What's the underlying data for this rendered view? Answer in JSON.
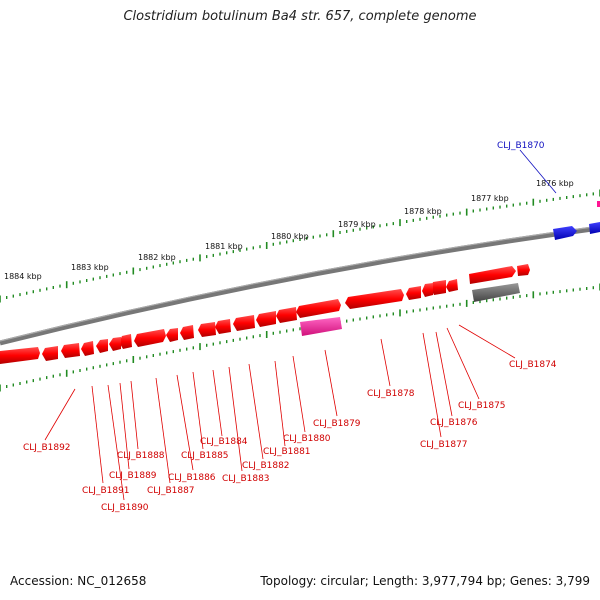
{
  "title": "Clostridium botulinum Ba4 str. 657, complete genome",
  "footer": {
    "accession": "Accession: NC_012658",
    "summary": "Topology: circular; Length: 3,977,794 bp; Genes: 3,799"
  },
  "colors": {
    "forward_gene": "#ff0000",
    "reverse_gene": "#ff0000",
    "highlight_gene": "#ff1493",
    "blue_gene": "#0000ff",
    "gray_gene": "#666666",
    "backbone": "#777777",
    "tick": "#228b22",
    "label_red": "#d00000",
    "label_blue": "#1010c0"
  },
  "kbp_labels": [
    "1876 kbp",
    "1877 kbp",
    "1878 kbp",
    "1879 kbp",
    "1880 kbp",
    "1881 kbp",
    "1882 kbp",
    "1883 kbp",
    "1884 kbp"
  ],
  "gene_labels": [
    "CLJ_B1870",
    "CLJ_B1874",
    "CLJ_B1875",
    "CLJ_B1876",
    "CLJ_B1877",
    "CLJ_B1878",
    "CLJ_B1879",
    "CLJ_B1880",
    "CLJ_B1881",
    "CLJ_B1882",
    "CLJ_B1883",
    "CLJ_B1884",
    "CLJ_B1885",
    "CLJ_B1886",
    "CLJ_B1887",
    "CLJ_B1888",
    "CLJ_B1889",
    "CLJ_B1890",
    "CLJ_B1891",
    "CLJ_B1892"
  ]
}
